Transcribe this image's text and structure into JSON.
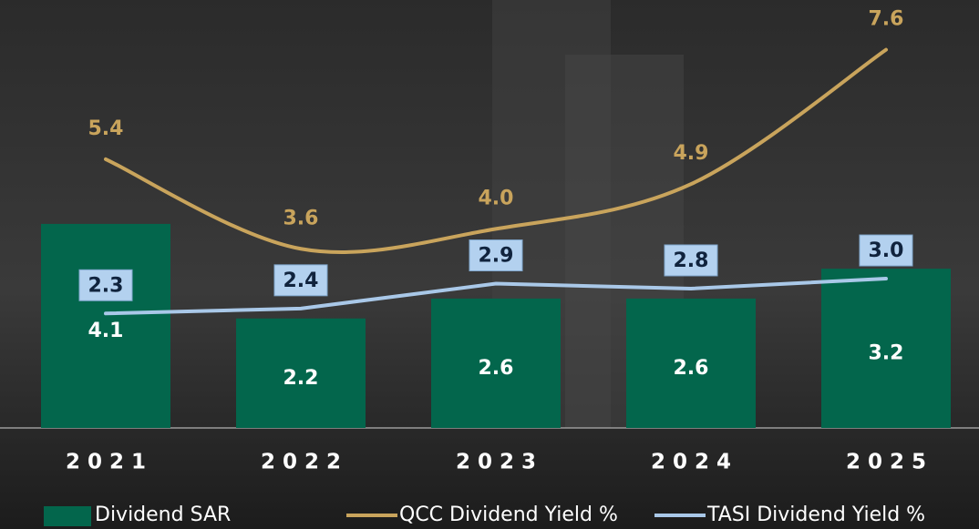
{
  "chart_data": {
    "type": "combo",
    "categories": [
      "2021",
      "2022",
      "2023",
      "2024",
      "2025"
    ],
    "series": [
      {
        "name": "Dividend SAR",
        "type": "bar",
        "color": "#03664c",
        "values": [
          4.1,
          2.2,
          2.6,
          2.6,
          3.2
        ]
      },
      {
        "name": "QCC Dividend Yield %",
        "type": "line",
        "smooth": true,
        "color": "#c9a45c",
        "values": [
          5.4,
          3.6,
          4.0,
          4.9,
          7.6
        ],
        "value_labels": [
          "5.4",
          "3.6",
          "4.0",
          "4.9",
          "7.6"
        ]
      },
      {
        "name": "TASI Dividend Yield %",
        "type": "line",
        "smooth": false,
        "color": "#a9c8e8",
        "values": [
          2.3,
          2.4,
          2.9,
          2.8,
          3.0
        ],
        "value_labels": [
          "2.3",
          "2.4",
          "2.9",
          "2.8",
          "3.0"
        ]
      }
    ],
    "ylim": [
      0,
      8.6
    ],
    "legend": "bottom"
  }
}
